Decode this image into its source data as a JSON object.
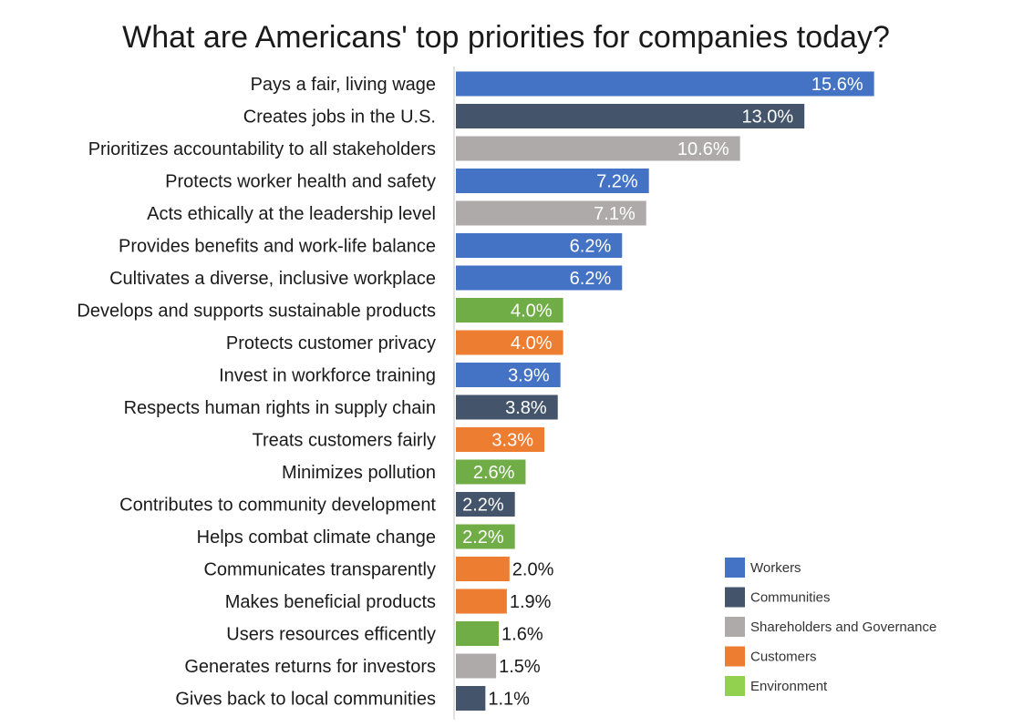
{
  "chart_data": {
    "type": "bar",
    "orientation": "horizontal",
    "title": "What are Americans' top priorities for companies today?",
    "xlabel": "",
    "ylabel": "",
    "xlim": [
      0,
      16
    ],
    "grid": false,
    "legend_position": "bottom-right",
    "value_format": "percent_1dp",
    "groups": [
      {
        "name": "Workers",
        "color": "#4472C4"
      },
      {
        "name": "Communities",
        "color": "#44546A"
      },
      {
        "name": "Shareholders and Governance",
        "color": "#AEAAAA"
      },
      {
        "name": "Customers",
        "color": "#ED7D31"
      },
      {
        "name": "Environment",
        "color": "#70AD47"
      }
    ],
    "bars": [
      {
        "label": "Pays a fair, living wage",
        "value": 15.6,
        "display": "15.6%",
        "group": "Workers"
      },
      {
        "label": "Creates jobs in the U.S.",
        "value": 13.0,
        "display": "13.0%",
        "group": "Communities"
      },
      {
        "label": "Prioritizes accountability to all stakeholders",
        "value": 10.6,
        "display": "10.6%",
        "group": "Shareholders and Governance"
      },
      {
        "label": "Protects worker health and safety",
        "value": 7.2,
        "display": "7.2%",
        "group": "Workers"
      },
      {
        "label": "Acts ethically at the leadership level",
        "value": 7.1,
        "display": "7.1%",
        "group": "Shareholders and Governance"
      },
      {
        "label": "Provides benefits and work-life balance",
        "value": 6.2,
        "display": "6.2%",
        "group": "Workers"
      },
      {
        "label": "Cultivates a diverse, inclusive workplace",
        "value": 6.2,
        "display": "6.2%",
        "group": "Workers"
      },
      {
        "label": "Develops and supports sustainable products",
        "value": 4.0,
        "display": "4.0%",
        "group": "Environment"
      },
      {
        "label": "Protects customer privacy",
        "value": 4.0,
        "display": "4.0%",
        "group": "Customers"
      },
      {
        "label": "Invest in workforce training",
        "value": 3.9,
        "display": "3.9%",
        "group": "Workers"
      },
      {
        "label": "Respects human rights in supply chain",
        "value": 3.8,
        "display": "3.8%",
        "group": "Communities"
      },
      {
        "label": "Treats customers fairly",
        "value": 3.3,
        "display": "3.3%",
        "group": "Customers"
      },
      {
        "label": "Minimizes pollution",
        "value": 2.6,
        "display": "2.6%",
        "group": "Environment"
      },
      {
        "label": "Contributes to community development",
        "value": 2.2,
        "display": "2.2%",
        "group": "Communities"
      },
      {
        "label": "Helps combat climate change",
        "value": 2.2,
        "display": "2.2%",
        "group": "Environment"
      },
      {
        "label": "Communicates transparently",
        "value": 2.0,
        "display": "2.0%",
        "group": "Customers"
      },
      {
        "label": "Makes beneficial products",
        "value": 1.9,
        "display": "1.9%",
        "group": "Customers"
      },
      {
        "label": "Users resources efficently",
        "value": 1.6,
        "display": "1.6%",
        "group": "Environment"
      },
      {
        "label": "Generates returns for investors",
        "value": 1.5,
        "display": "1.5%",
        "group": "Shareholders and Governance"
      },
      {
        "label": "Gives back to local communities",
        "value": 1.1,
        "display": "1.1%",
        "group": "Communities"
      }
    ],
    "legend": [
      {
        "name": "Workers",
        "color": "#4472C4"
      },
      {
        "name": "Communities",
        "color": "#44546A"
      },
      {
        "name": "Shareholders and Governance",
        "color": "#AEAAAA"
      },
      {
        "name": "Customers",
        "color": "#ED7D31"
      },
      {
        "name": "Environment",
        "color": "#92D050"
      }
    ]
  }
}
